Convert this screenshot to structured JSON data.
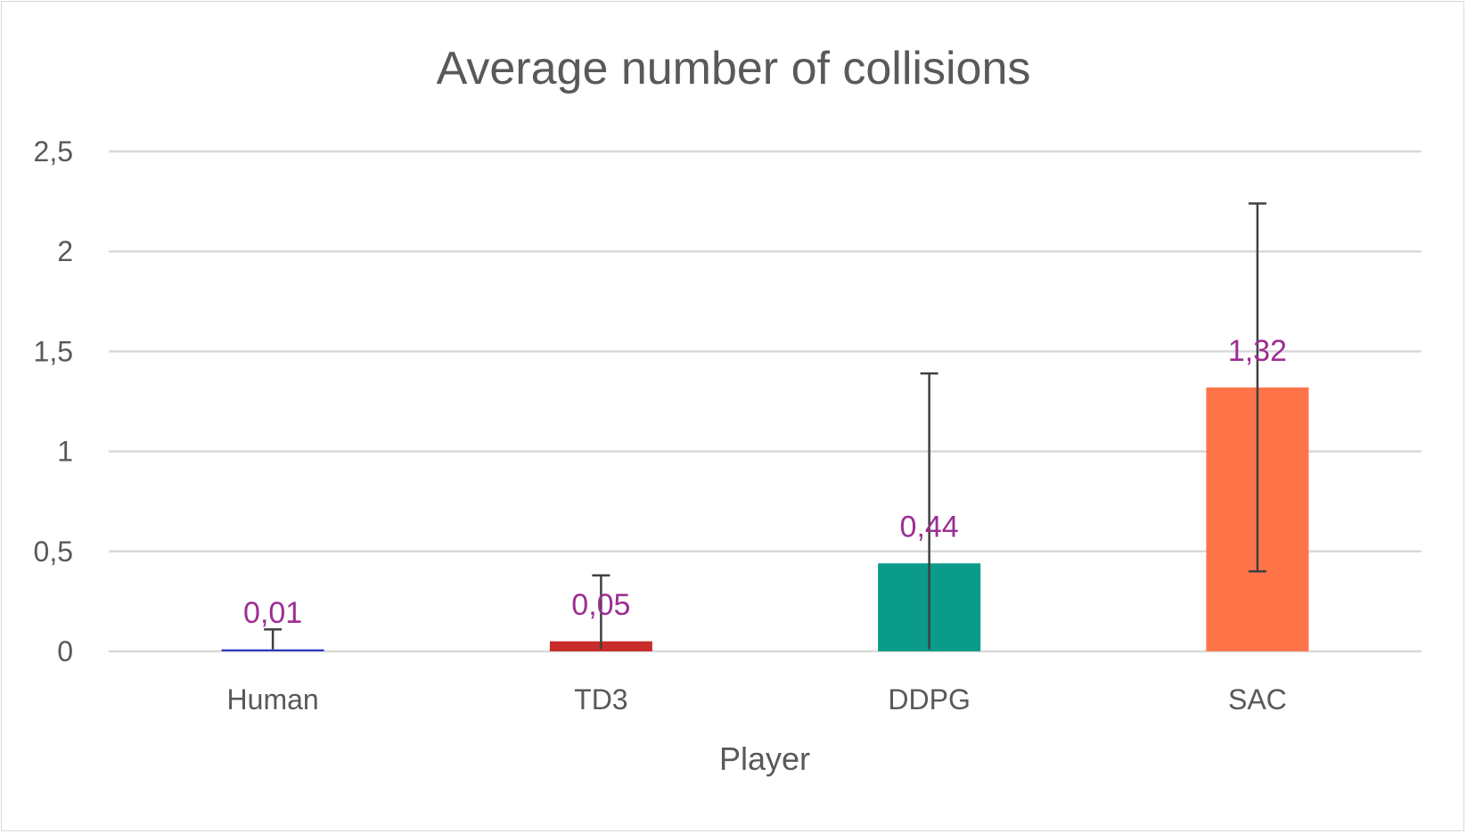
{
  "chart_data": {
    "type": "bar",
    "title": "Average number of collisions",
    "xlabel": "Player",
    "ylabel": "",
    "categories": [
      "Human",
      "TD3",
      "DDPG",
      "SAC"
    ],
    "values": [
      0.01,
      0.05,
      0.44,
      1.32
    ],
    "value_labels": [
      "0,01",
      "0,05",
      "0,44",
      "1,32"
    ],
    "error_bars": [
      {
        "low": 0.01,
        "high": 0.11
      },
      {
        "low": 0.01,
        "high": 0.38
      },
      {
        "low": 0.01,
        "high": 1.39
      },
      {
        "low": 0.4,
        "high": 2.24
      }
    ],
    "ylim": [
      0,
      2.5
    ],
    "yticks": [
      0,
      0.5,
      1,
      1.5,
      2,
      2.5
    ],
    "ytick_labels": [
      "0",
      "0,5",
      "1",
      "1,5",
      "2",
      "2,5"
    ],
    "grid": true,
    "legend": "none",
    "colors": [
      "#2f3bbf",
      "#c92a2a",
      "#0b9b8a",
      "#ff7549"
    ],
    "label_color": "#9c2e93",
    "error_bar_color": "#404040"
  }
}
